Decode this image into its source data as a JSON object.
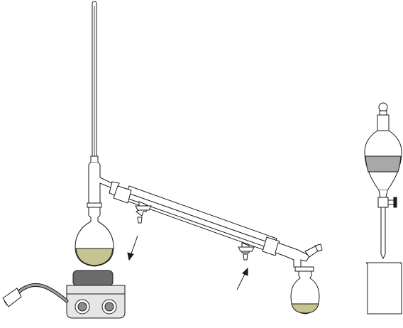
{
  "colors": {
    "outline": "#1a1a1a",
    "glass": "#ffffff",
    "liquid": "#c7c48f",
    "hotplate_top": "#6b6b6b",
    "hotplate_body": "#e6e6e6",
    "funnel_layer": "#a8a8a8",
    "cord": "#a0a0a0"
  },
  "icons": {
    "water_out_arrow": "arrow-down-left-icon",
    "water_in_arrow": "arrow-up-right-icon"
  },
  "apparatus": [
    "distillation-flask",
    "thermometer",
    "distillation-head",
    "liebig-condenser",
    "vacuum-adapter",
    "receiving-flask",
    "hot-plate",
    "separatory-funnel",
    "beaker"
  ]
}
